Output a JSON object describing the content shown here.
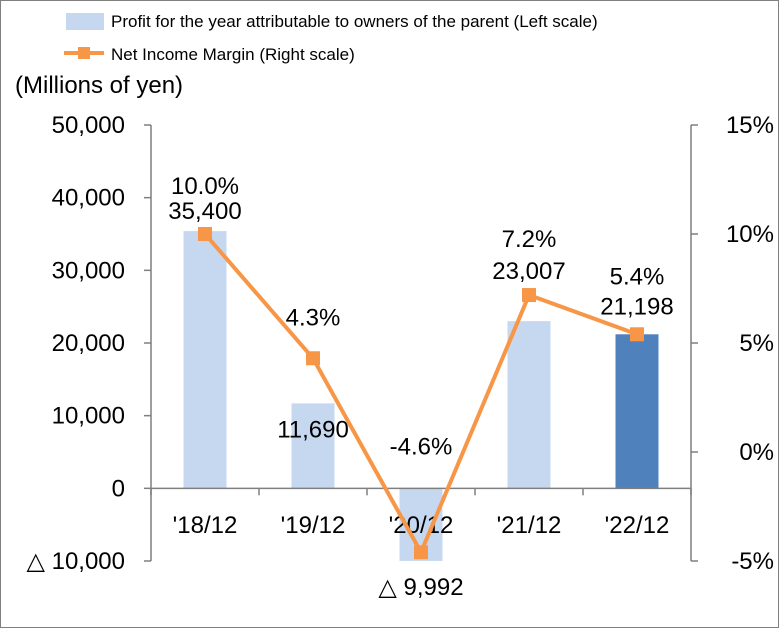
{
  "chart_data": {
    "type": "bar",
    "categories": [
      "'18/12",
      "'19/12",
      "'20/12",
      "'21/12",
      "'22/12"
    ],
    "series": [
      {
        "name": "Profit for the year attributable to owners of the parent  (Left scale)",
        "type": "bar",
        "axis": "left",
        "values": [
          35400,
          11690,
          -9992,
          23007,
          21198
        ],
        "value_labels": [
          "35,400",
          "11,690",
          "△ 9,992",
          "23,007",
          "21,198"
        ],
        "colors": [
          "#c6d8f0",
          "#c6d8f0",
          "#c6d8f0",
          "#c6d8f0",
          "#4f81bd"
        ]
      },
      {
        "name": "Net Income Margin (Right scale)",
        "type": "line",
        "axis": "right",
        "values": [
          10.0,
          4.3,
          -4.6,
          7.2,
          5.4
        ],
        "value_labels": [
          "10.0%",
          "4.3%",
          "-4.6%",
          "7.2%",
          "5.4%"
        ],
        "color": "#f79646"
      }
    ],
    "ylabel": "(Millions of yen)",
    "ylim": [
      -10000,
      50000
    ],
    "y_ticks": [
      -10000,
      0,
      10000,
      20000,
      30000,
      40000,
      50000
    ],
    "y_tick_labels": [
      "△ 10,000",
      "0",
      "10,000",
      "20,000",
      "30,000",
      "40,000",
      "50,000"
    ],
    "y2lim": [
      -5,
      15
    ],
    "y2_ticks": [
      -5,
      0,
      5,
      10,
      15
    ],
    "y2_tick_labels": [
      "-5%",
      "0%",
      "5%",
      "10%",
      "15%"
    ],
    "legend_position": "top",
    "grid": false
  }
}
